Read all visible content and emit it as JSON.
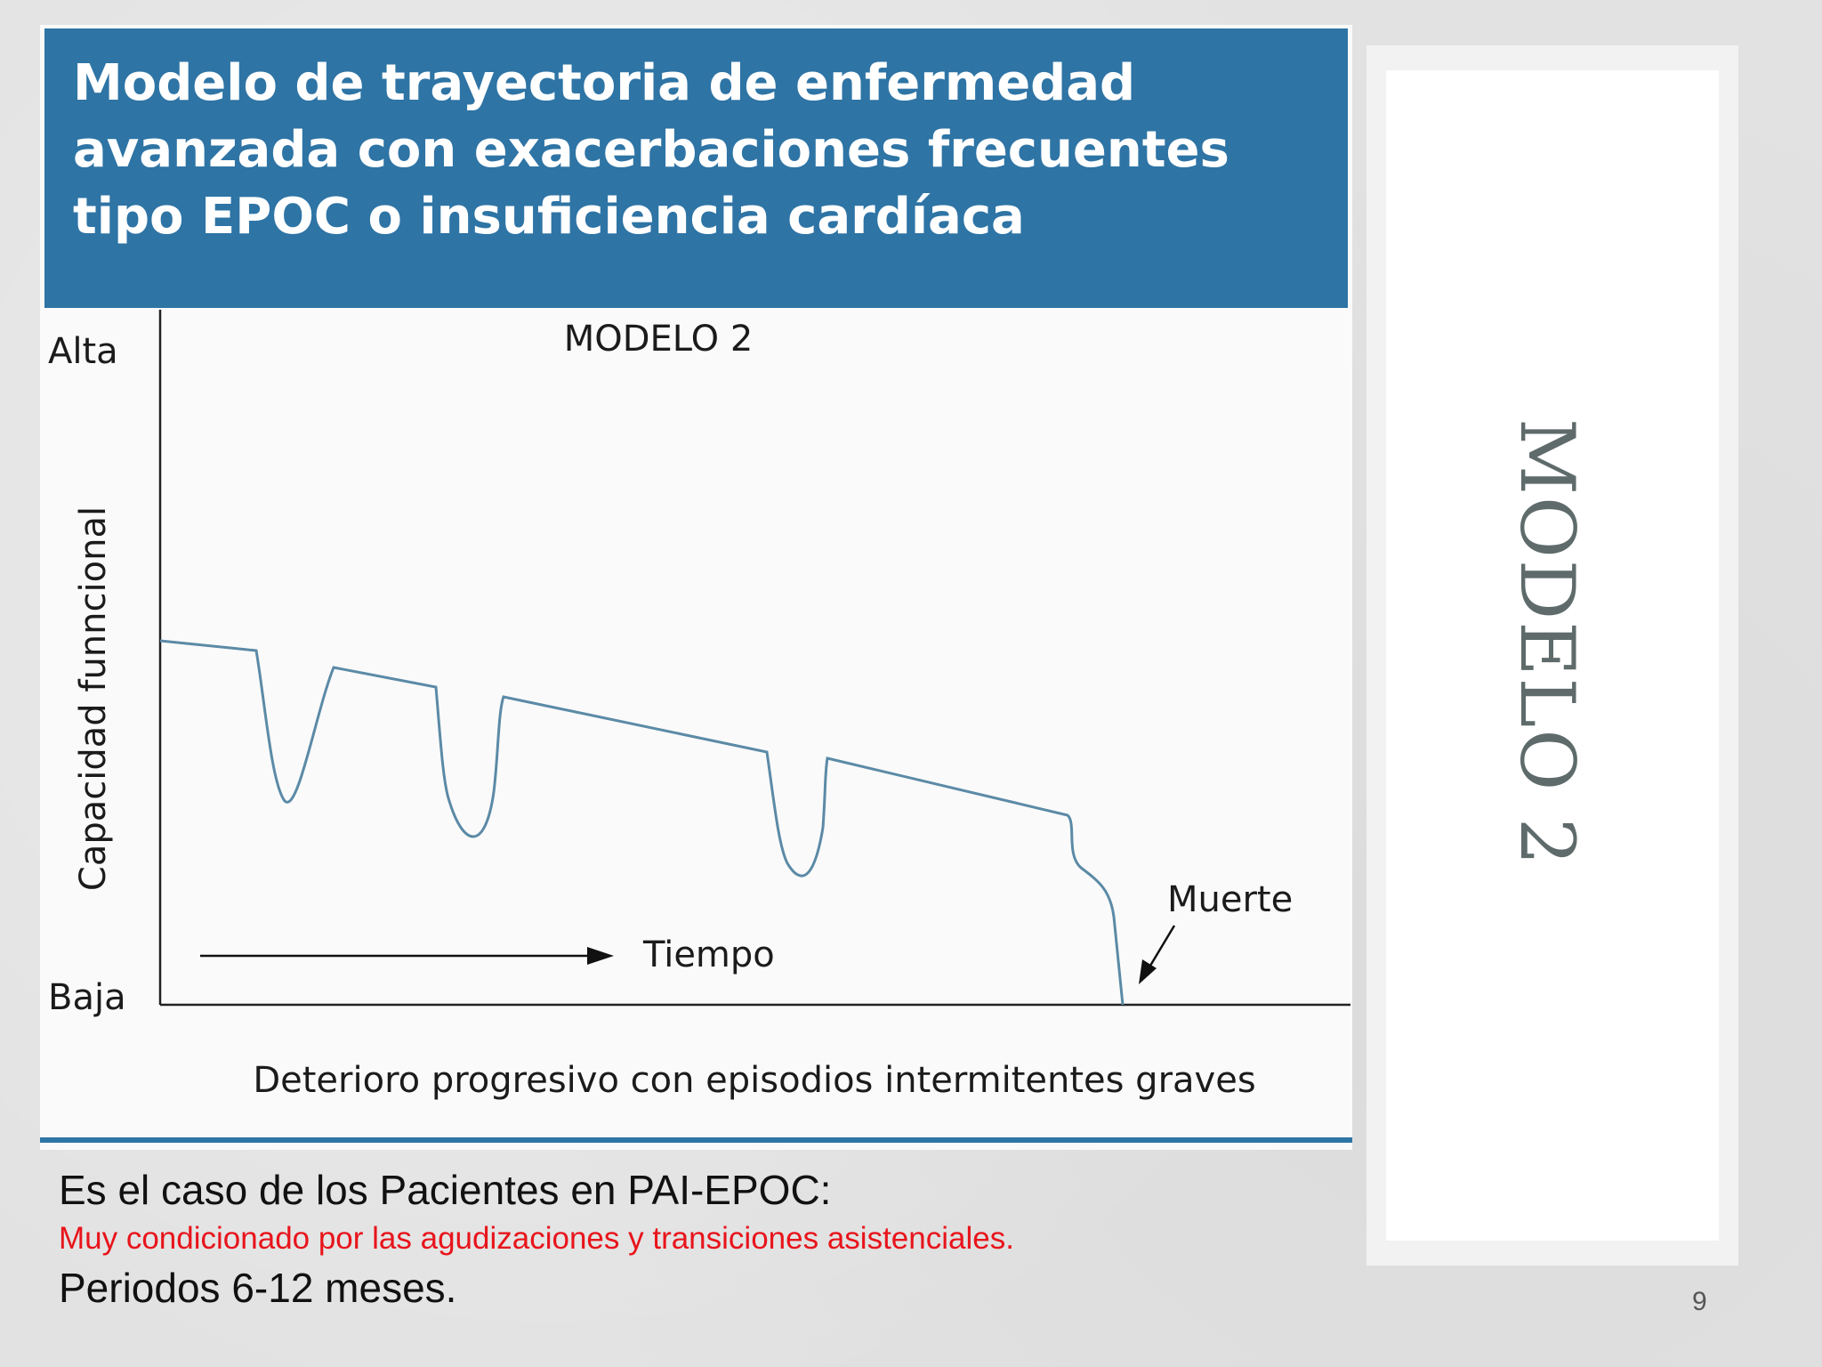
{
  "figure": {
    "title": "Modelo de trayectoria de enfermedad avanzada con exacerbaciones frecuentes tipo EPOC o insuficiencia cardíaca",
    "header_color": "#2e74a5",
    "model_label": "MODELO 2",
    "y_axis_label": "Capacidad funncional",
    "y_high": "Alta",
    "y_low": "Baja",
    "time_label": "Tiempo",
    "death_label": "Muerte",
    "subtitle": "Deterioro progresivo con episodios intermitentes graves"
  },
  "side": {
    "title": "MODELO 2"
  },
  "captions": {
    "main": "Es el caso de los Pacientes en PAI-EPOC:",
    "highlight": "Muy condicionado por las agudizaciones y transiciones asistenciales.",
    "highlight_color": "#e8141b",
    "period": "Periodos 6-12 meses."
  },
  "page_number": "9"
}
